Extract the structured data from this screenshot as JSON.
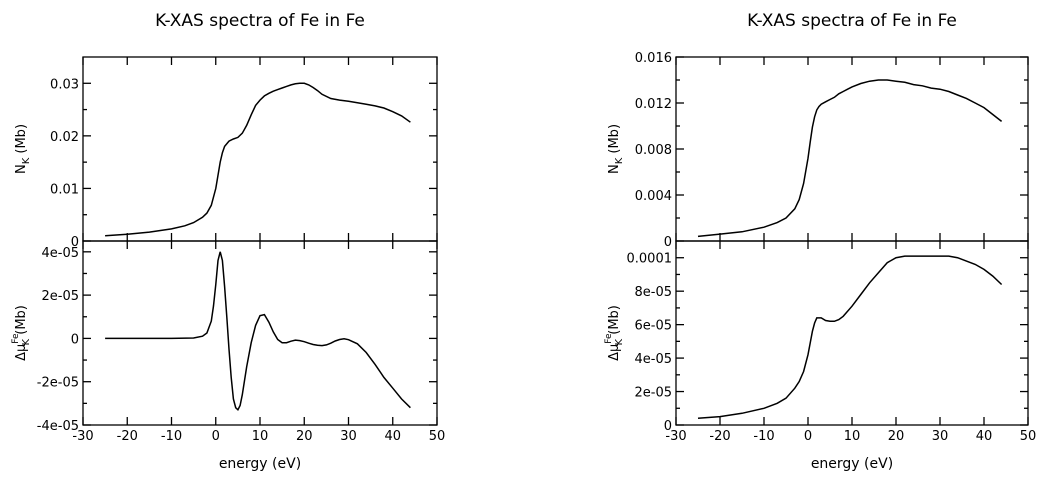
{
  "chart_data": [
    {
      "type": "line",
      "title": "K-XAS spectra of Fe in Fe",
      "xlabel": "energy (eV)",
      "xlim": [
        -30,
        50
      ],
      "x_ticks": [
        "-30",
        "-20",
        "-10",
        "0",
        "10",
        "20",
        "30",
        "40",
        "50"
      ],
      "panels": [
        {
          "ylabel": "N_K   (Mb)",
          "ylim": [
            0,
            0.035
          ],
          "y_ticks": [
            "0",
            "0.01",
            "0.02",
            "0.03"
          ],
          "series": [
            {
              "x": [
                -25,
                -20,
                -15,
                -10,
                -7,
                -5,
                -3,
                -2,
                -1,
                0,
                0.5,
                1,
                1.5,
                2,
                3,
                4,
                5,
                6,
                7,
                8,
                9,
                10,
                11,
                12,
                13,
                14,
                15,
                16,
                17,
                18,
                19,
                20,
                21,
                22,
                23,
                24,
                26,
                28,
                30,
                32,
                34,
                36,
                38,
                40,
                42,
                44
              ],
              "y": [
                0.001,
                0.0013,
                0.0017,
                0.0023,
                0.0029,
                0.0035,
                0.0045,
                0.0053,
                0.0068,
                0.01,
                0.0125,
                0.015,
                0.0168,
                0.018,
                0.019,
                0.0194,
                0.0197,
                0.0205,
                0.022,
                0.024,
                0.0258,
                0.0268,
                0.0276,
                0.0281,
                0.0285,
                0.0288,
                0.0291,
                0.0294,
                0.0297,
                0.0299,
                0.03,
                0.03,
                0.0297,
                0.0292,
                0.0286,
                0.0279,
                0.0271,
                0.0268,
                0.0266,
                0.0263,
                0.026,
                0.0257,
                0.0253,
                0.0246,
                0.0238,
                0.0226
              ]
            }
          ]
        },
        {
          "ylabel": "Δμ_K^Fe   (Mb)",
          "ylim": [
            -4e-05,
            4.5e-05
          ],
          "y_ticks": [
            "-4e-05",
            "-2e-05",
            "0",
            "2e-05",
            "4e-05"
          ],
          "series": [
            {
              "x": [
                -25,
                -15,
                -10,
                -5,
                -3,
                -2,
                -1,
                -0.5,
                0,
                0.5,
                1,
                1.5,
                2,
                2.5,
                3,
                3.5,
                4,
                4.5,
                5,
                5.5,
                6,
                7,
                8,
                9,
                10,
                11,
                12,
                13,
                14,
                15,
                16,
                17,
                18,
                19,
                20,
                21,
                22,
                23,
                24,
                25,
                26,
                27,
                28,
                29,
                30,
                32,
                34,
                36,
                38,
                40,
                42,
                44
              ],
              "y": [
                0,
                0,
                0,
                2e-07,
                1e-06,
                2.5e-06,
                8e-06,
                1.5e-05,
                2.5e-05,
                3.6e-05,
                4e-05,
                3.6e-05,
                2.4e-05,
                1e-05,
                -5e-06,
                -1.8e-05,
                -2.8e-05,
                -3.2e-05,
                -3.3e-05,
                -3.1e-05,
                -2.6e-05,
                -1.3e-05,
                -2e-06,
                6e-06,
                1.05e-05,
                1.1e-05,
                7.5e-06,
                3e-06,
                -5e-07,
                -2e-06,
                -2e-06,
                -1.3e-06,
                -8e-07,
                -1e-06,
                -1.5e-06,
                -2.2e-06,
                -2.8e-06,
                -3.2e-06,
                -3.3e-06,
                -3e-06,
                -2.2e-06,
                -1.2e-06,
                -5e-07,
                -2e-07,
                -6e-07,
                -2.5e-06,
                -6.5e-06,
                -1.2e-05,
                -1.8e-05,
                -2.3e-05,
                -2.8e-05,
                -3.2e-05
              ]
            }
          ]
        }
      ]
    },
    {
      "type": "line",
      "title": "K-XAS spectra of Fe in Fe",
      "xlabel": "energy (eV)",
      "xlim": [
        -30,
        50
      ],
      "x_ticks": [
        "-30",
        "-20",
        "-10",
        "0",
        "10",
        "20",
        "30",
        "40",
        "50"
      ],
      "panels": [
        {
          "ylabel": "N_K   (Mb)",
          "ylim": [
            0,
            0.016
          ],
          "y_ticks": [
            "0",
            "0.004",
            "0.008",
            "0.012",
            "0.016"
          ],
          "series": [
            {
              "x": [
                -25,
                -20,
                -15,
                -10,
                -7,
                -5,
                -3,
                -2,
                -1,
                0,
                0.5,
                1,
                1.5,
                2,
                2.5,
                3,
                4,
                5,
                6,
                7,
                8,
                9,
                10,
                12,
                14,
                16,
                18,
                20,
                22,
                24,
                26,
                28,
                30,
                32,
                34,
                36,
                38,
                40,
                42,
                44
              ],
              "y": [
                0.0004,
                0.0006,
                0.0008,
                0.0012,
                0.0016,
                0.002,
                0.0028,
                0.0036,
                0.005,
                0.0072,
                0.0086,
                0.0099,
                0.0108,
                0.0114,
                0.0117,
                0.0119,
                0.0121,
                0.0123,
                0.0125,
                0.0128,
                0.013,
                0.0132,
                0.0134,
                0.0137,
                0.0139,
                0.014,
                0.014,
                0.0139,
                0.0138,
                0.0136,
                0.0135,
                0.0133,
                0.0132,
                0.013,
                0.0127,
                0.0124,
                0.012,
                0.0116,
                0.011,
                0.0104
              ]
            }
          ]
        },
        {
          "ylabel": "Δμ_K^Fe   (Mb)",
          "ylim": [
            0,
            0.00011
          ],
          "y_ticks": [
            "0",
            "2e-05",
            "4e-05",
            "6e-05",
            "8e-05",
            "0.0001"
          ],
          "series": [
            {
              "x": [
                -25,
                -20,
                -15,
                -10,
                -7,
                -5,
                -3,
                -2,
                -1,
                0,
                0.5,
                1,
                1.5,
                2,
                3,
                4,
                5,
                6,
                7,
                8,
                10,
                12,
                14,
                16,
                18,
                20,
                22,
                24,
                26,
                28,
                30,
                32,
                34,
                36,
                38,
                40,
                42,
                44
              ],
              "y": [
                4e-06,
                5e-06,
                7e-06,
                1e-05,
                1.3e-05,
                1.6e-05,
                2.2e-05,
                2.6e-05,
                3.2e-05,
                4.2e-05,
                4.9e-05,
                5.6e-05,
                6.1e-05,
                6.4e-05,
                6.4e-05,
                6.25e-05,
                6.2e-05,
                6.2e-05,
                6.3e-05,
                6.5e-05,
                7.1e-05,
                7.8e-05,
                8.5e-05,
                9.1e-05,
                9.7e-05,
                0.0001,
                0.000101,
                0.000101,
                0.000101,
                0.000101,
                0.000101,
                0.000101,
                0.0001,
                9.8e-05,
                9.6e-05,
                9.3e-05,
                8.9e-05,
                8.4e-05
              ]
            }
          ]
        }
      ]
    }
  ]
}
